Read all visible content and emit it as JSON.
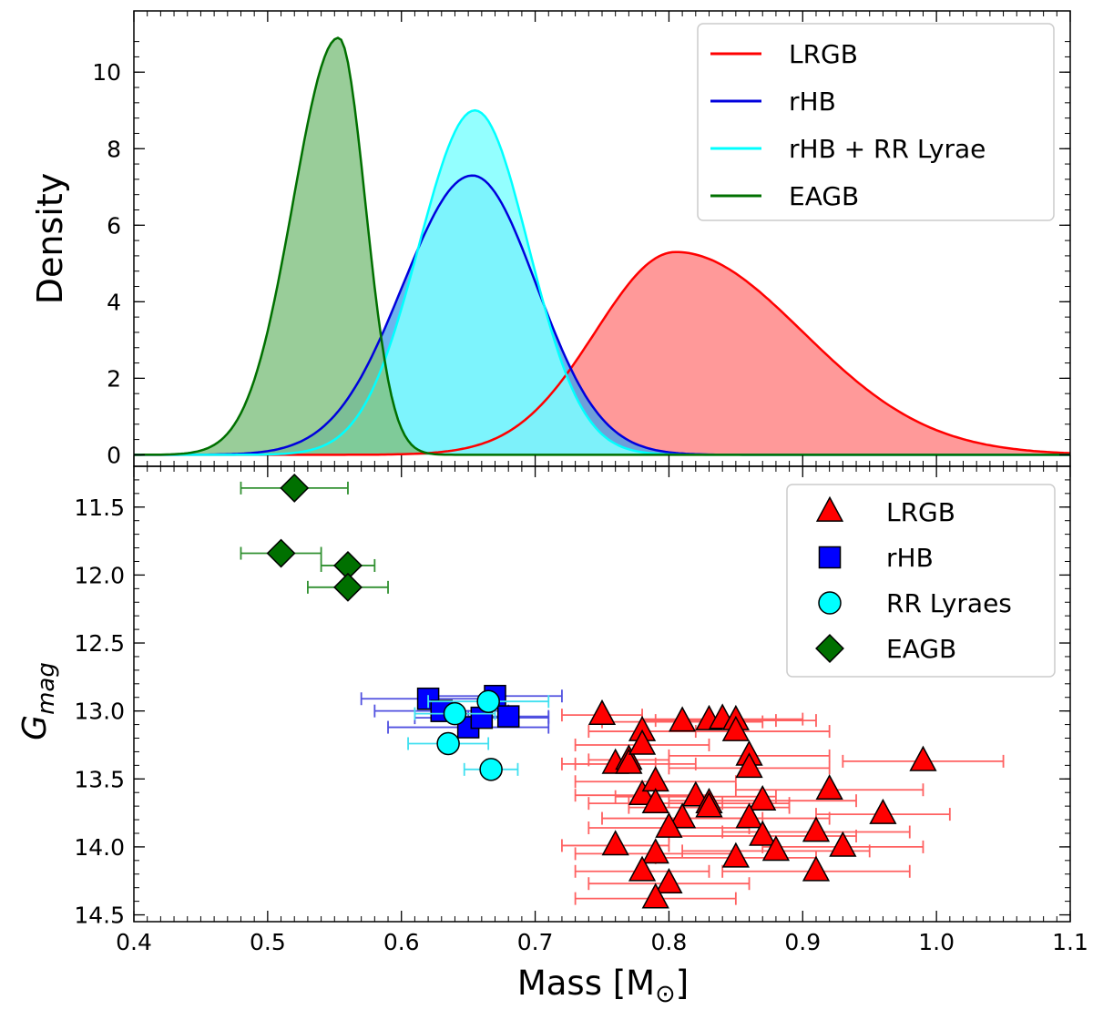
{
  "chart_data": [
    {
      "type": "area",
      "panel": "top",
      "ylabel": "Density",
      "xlim": [
        0.4,
        1.1
      ],
      "ylim": [
        -0.3,
        11.6
      ],
      "yticks": [
        0,
        2,
        4,
        6,
        8,
        10
      ],
      "legend_position": "top-right",
      "series": [
        {
          "name": "LRGB",
          "color": "#ff0000",
          "fill": "#ff8080",
          "mu": 0.805,
          "peak": 5.3,
          "sigma_left": 0.06,
          "sigma_right": 0.095
        },
        {
          "name": "rHB",
          "color": "#0000dd",
          "fill": "#4aa0e8",
          "mu": 0.653,
          "peak": 7.3,
          "sigma_left": 0.052,
          "sigma_right": 0.048
        },
        {
          "name": "rHB + RR Lyrae",
          "color": "#00ffff",
          "fill": "#80ffff",
          "mu": 0.655,
          "peak": 9.0,
          "sigma_left": 0.042,
          "sigma_right": 0.04
        },
        {
          "name": "EAGB",
          "color": "#007000",
          "fill": "#80c080",
          "mu": 0.553,
          "peak": 10.9,
          "sigma_left": 0.034,
          "sigma_right": 0.02
        }
      ]
    },
    {
      "type": "scatter",
      "panel": "bottom",
      "xlabel": "Mass [M",
      "xlabel_sub": "⊙",
      "xlabel_end": "]",
      "ylabel": "G",
      "ylabel_sub": "mag",
      "xlim": [
        0.4,
        1.1
      ],
      "ylim": [
        14.55,
        11.2
      ],
      "xticks": [
        "0.4",
        "0.5",
        "0.6",
        "0.7",
        "0.8",
        "0.9",
        "1.0",
        "1.1"
      ],
      "yticks": [
        "11.5",
        "12.0",
        "12.5",
        "13.0",
        "13.5",
        "14.0",
        "14.5"
      ],
      "legend_position": "top-right",
      "series": [
        {
          "name": "LRGB",
          "marker": "triangle",
          "color": "#ff0000",
          "err_color": "#ff6060",
          "points": [
            [
              0.75,
              13.03,
              0.03
            ],
            [
              0.76,
              13.39,
              0.03
            ],
            [
              0.77,
              13.36,
              0.03
            ],
            [
              0.77,
              13.39,
              0.05
            ],
            [
              0.78,
              13.15,
              0.04
            ],
            [
              0.78,
              13.25,
              0.05
            ],
            [
              0.78,
              13.62,
              0.05
            ],
            [
              0.79,
              13.52,
              0.06
            ],
            [
              0.79,
              13.68,
              0.05
            ],
            [
              0.81,
              13.08,
              0.06
            ],
            [
              0.83,
              13.07,
              0.05
            ],
            [
              0.84,
              13.06,
              0.06
            ],
            [
              0.85,
              13.07,
              0.06
            ],
            [
              0.85,
              13.15,
              0.07
            ],
            [
              0.86,
              13.33,
              0.06
            ],
            [
              0.86,
              13.42,
              0.06
            ],
            [
              0.82,
              13.63,
              0.06
            ],
            [
              0.83,
              13.68,
              0.06
            ],
            [
              0.83,
              13.71,
              0.06
            ],
            [
              0.87,
              13.66,
              0.07
            ],
            [
              0.86,
              13.79,
              0.06
            ],
            [
              0.87,
              13.92,
              0.07
            ],
            [
              0.88,
              14.03,
              0.07
            ],
            [
              0.81,
              13.79,
              0.06
            ],
            [
              0.8,
              13.86,
              0.06
            ],
            [
              0.76,
              13.99,
              0.04
            ],
            [
              0.79,
              14.05,
              0.06
            ],
            [
              0.78,
              14.18,
              0.05
            ],
            [
              0.8,
              14.27,
              0.06
            ],
            [
              0.79,
              14.38,
              0.06
            ],
            [
              0.85,
              14.08,
              0.06
            ],
            [
              0.91,
              13.89,
              0.07
            ],
            [
              0.92,
              13.58,
              0.07
            ],
            [
              0.93,
              14.0,
              0.06
            ],
            [
              0.91,
              14.18,
              0.07
            ],
            [
              0.96,
              13.76,
              0.05
            ],
            [
              0.99,
              13.37,
              0.06
            ]
          ]
        },
        {
          "name": "rHB",
          "marker": "square",
          "color": "#0000ff",
          "err_color": "#5050e0",
          "points": [
            [
              0.62,
              12.91,
              0.05
            ],
            [
              0.63,
              13.0,
              0.05
            ],
            [
              0.65,
              13.12,
              0.06
            ],
            [
              0.66,
              13.05,
              0.05
            ],
            [
              0.67,
              12.89,
              0.05
            ],
            [
              0.68,
              13.04,
              0.03
            ]
          ]
        },
        {
          "name": "RR Lyraes",
          "marker": "circle",
          "color": "#00ffff",
          "err_color": "#40e0f0",
          "points": [
            [
              0.64,
              13.02,
              0.03
            ],
            [
              0.665,
              12.93,
              0.045
            ],
            [
              0.635,
              13.24,
              0.03
            ],
            [
              0.667,
              13.43,
              0.02
            ]
          ]
        },
        {
          "name": "EAGB",
          "marker": "diamond",
          "color": "#007000",
          "err_color": "#309030",
          "points": [
            [
              0.52,
              11.36,
              0.04
            ],
            [
              0.51,
              11.84,
              0.03
            ],
            [
              0.56,
              11.93,
              0.02
            ],
            [
              0.56,
              12.09,
              0.03
            ]
          ]
        }
      ]
    }
  ]
}
